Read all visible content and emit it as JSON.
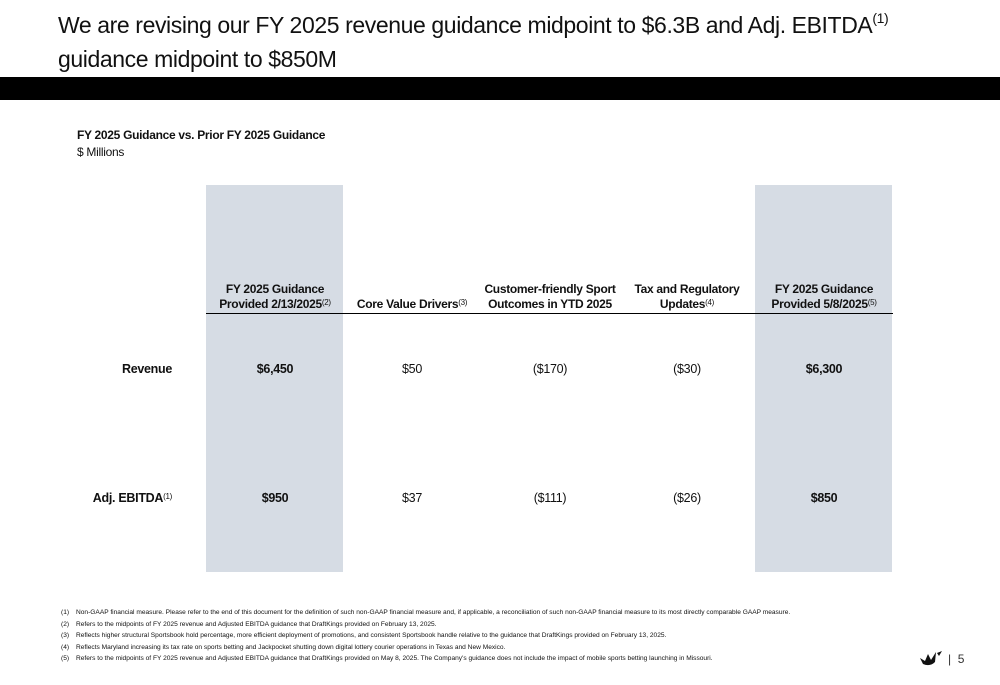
{
  "header": {
    "title_pre": "We are revising our FY 2025 revenue guidance midpoint to $6.3B and Adj. EBITDA",
    "title_sup": "(1)",
    "title_post": "guidance midpoint to $850M"
  },
  "subtitle": "FY 2025 Guidance vs. Prior FY 2025 Guidance",
  "units": "$ Millions",
  "table": {
    "columns": [
      {
        "lines": [
          "FY 2025  Guidance",
          "Provided 2/13/2025"
        ],
        "sup": "(2)",
        "shaded": true
      },
      {
        "lines": [
          "Core Value Drivers"
        ],
        "sup": "(3)",
        "shaded": false
      },
      {
        "lines": [
          "Customer-friendly Sport",
          "Outcomes in YTD 2025"
        ],
        "shaded": false
      },
      {
        "lines": [
          "Tax and Regulatory",
          "Updates"
        ],
        "sup": "(4)",
        "shaded": false
      },
      {
        "lines": [
          "FY 2025 Guidance",
          "Provided 5/8/2025"
        ],
        "sup": "(5)",
        "shaded": true
      }
    ],
    "rows": [
      {
        "label": "Revenue",
        "cells": [
          "$6,450",
          "$50",
          "($170)",
          "($30)",
          "$6,300"
        ]
      },
      {
        "label": "Adj. EBITDA",
        "sup": "(1)",
        "cells": [
          "$950",
          "$37",
          "($111)",
          "($26)",
          "$850"
        ]
      }
    ]
  },
  "footnotes": [
    {
      "marker": "(1)",
      "text": "Non-GAAP financial measure. Please refer to the end of this document for the definition of such non-GAAP financial measure and, if applicable, a reconciliation of such non-GAAP financial measure to its most directly comparable GAAP measure."
    },
    {
      "marker": "(2)",
      "text": "Refers to the midpoints of FY 2025 revenue and Adjusted EBITDA guidance that DraftKings provided on February 13, 2025."
    },
    {
      "marker": "(3)",
      "text": "Reflects higher structural Sportsbook hold percentage, more efficient deployment of promotions, and consistent Sportsbook handle relative to the guidance that DraftKings provided on February 13, 2025."
    },
    {
      "marker": "(4)",
      "text": "Reflects Maryland increasing its tax rate on sports betting and Jackpocket shutting down digital lottery courier operations in Texas and New Mexico."
    },
    {
      "marker": "(5)",
      "text": "Refers to the midpoints of FY 2025 revenue and Adjusted EBITDA guidance that DraftKings provided on May 8, 2025. The Company's guidance does not include the impact of mobile sports betting launching in Missouri."
    }
  ],
  "page_number": "5"
}
